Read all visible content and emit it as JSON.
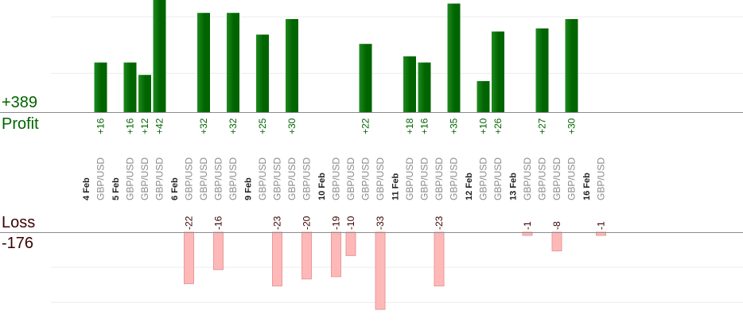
{
  "summary": {
    "profit_total": "+389",
    "profit_label": "Profit",
    "loss_label": "Loss",
    "loss_total": "-176"
  },
  "colors": {
    "profit": "#006400",
    "profit_highlight": "#1f8a1f",
    "loss_fill": "#ffb8b8",
    "loss_stroke": "#e79a9a",
    "grid": "#ececec",
    "axis": "#8c8c8c"
  },
  "chart_data": {
    "type": "bar",
    "ylim": [
      -35,
      50
    ],
    "grid": true,
    "categories": [
      {
        "label": "4 Feb",
        "kind": "date"
      },
      {
        "label": "GBP/USD",
        "kind": "pair",
        "value": 16
      },
      {
        "label": "5 Feb",
        "kind": "date"
      },
      {
        "label": "GBP/USD",
        "kind": "pair",
        "value": 16
      },
      {
        "label": "GBP/USD",
        "kind": "pair",
        "value": 12
      },
      {
        "label": "GBP/USD",
        "kind": "pair",
        "value": 42
      },
      {
        "label": "6 Feb",
        "kind": "date"
      },
      {
        "label": "GBP/USD",
        "kind": "pair",
        "value": -22
      },
      {
        "label": "GBP/USD",
        "kind": "pair",
        "value": 32
      },
      {
        "label": "GBP/USD",
        "kind": "pair",
        "value": -16
      },
      {
        "label": "GBP/USD",
        "kind": "pair",
        "value": 32
      },
      {
        "label": "9 Feb",
        "kind": "date"
      },
      {
        "label": "GBP/USD",
        "kind": "pair",
        "value": 25
      },
      {
        "label": "GBP/USD",
        "kind": "pair",
        "value": -23
      },
      {
        "label": "GBP/USD",
        "kind": "pair",
        "value": 30
      },
      {
        "label": "GBP/USD",
        "kind": "pair",
        "value": -20
      },
      {
        "label": "10 Feb",
        "kind": "date"
      },
      {
        "label": "GBP/USD",
        "kind": "pair",
        "value": -19
      },
      {
        "label": "GBP/USD",
        "kind": "pair",
        "value": -10
      },
      {
        "label": "GBP/USD",
        "kind": "pair",
        "value": 22
      },
      {
        "label": "GBP/USD",
        "kind": "pair",
        "value": -33
      },
      {
        "label": "11 Feb",
        "kind": "date"
      },
      {
        "label": "GBP/USD",
        "kind": "pair",
        "value": 18
      },
      {
        "label": "GBP/USD",
        "kind": "pair",
        "value": 16
      },
      {
        "label": "GBP/USD",
        "kind": "pair",
        "value": -23
      },
      {
        "label": "GBP/USD",
        "kind": "pair",
        "value": 35
      },
      {
        "label": "12 Feb",
        "kind": "date"
      },
      {
        "label": "GBP/USD",
        "kind": "pair",
        "value": 10
      },
      {
        "label": "GBP/USD",
        "kind": "pair",
        "value": 26
      },
      {
        "label": "13 Feb",
        "kind": "date"
      },
      {
        "label": "GBP/USD",
        "kind": "pair",
        "value": -1
      },
      {
        "label": "GBP/USD",
        "kind": "pair",
        "value": 27
      },
      {
        "label": "GBP/USD",
        "kind": "pair",
        "value": -8
      },
      {
        "label": "GBP/USD",
        "kind": "pair",
        "value": 30
      },
      {
        "label": "16 Feb",
        "kind": "date"
      },
      {
        "label": "GBP/USD",
        "kind": "pair",
        "value": -1
      }
    ]
  }
}
